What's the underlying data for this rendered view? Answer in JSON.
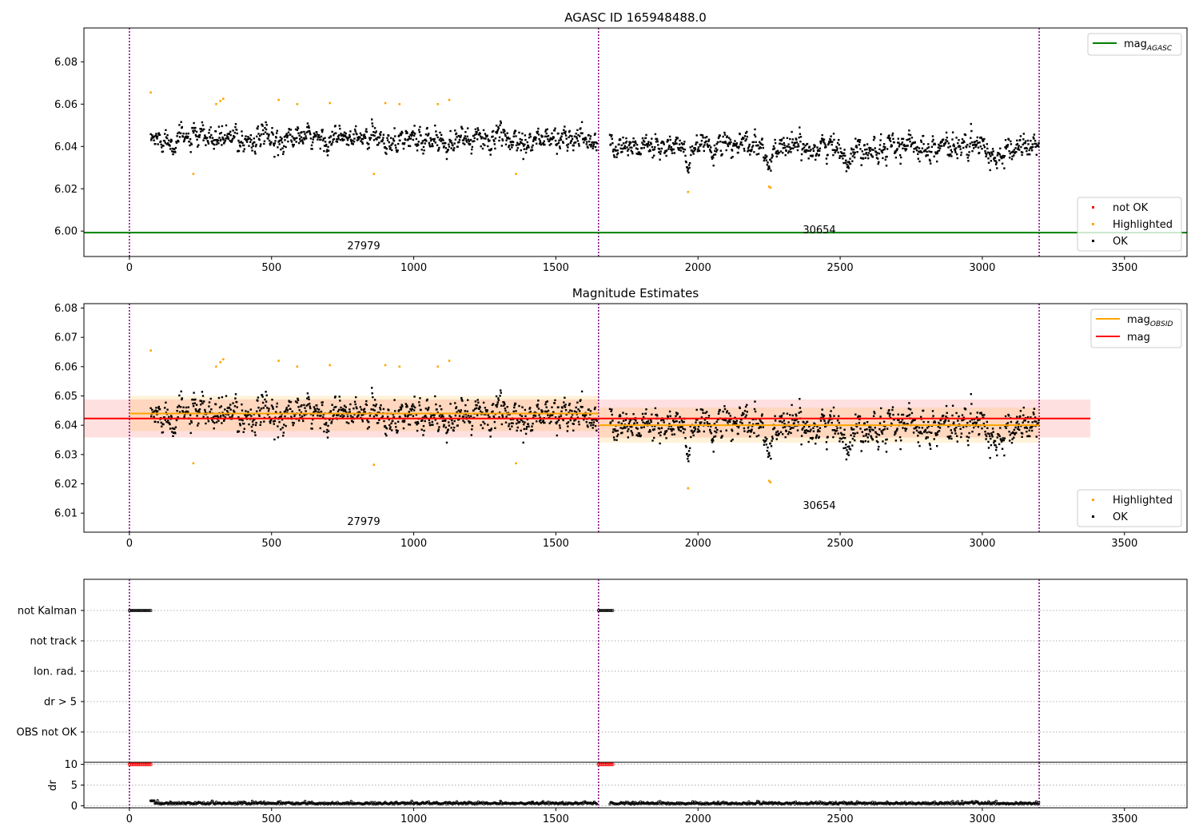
{
  "chart_data": [
    {
      "type": "scatter",
      "title": "AGASC ID 165948488.0",
      "xlabel": "",
      "ylabel": "",
      "xlim": [
        -160,
        3720
      ],
      "ylim": [
        5.988,
        6.096
      ],
      "xticks": [
        0,
        500,
        1000,
        1500,
        2000,
        2500,
        3000,
        3500
      ],
      "yticks": [
        6.0,
        6.02,
        6.04,
        6.06,
        6.08
      ],
      "ytick_labels": [
        "6.00",
        "6.02",
        "6.04",
        "6.06",
        "6.08"
      ],
      "grid": false,
      "obsid_boundaries": [
        0,
        1650,
        3200
      ],
      "obsid_labels": [
        {
          "text": "27979",
          "x": 825,
          "y": 5.993
        },
        {
          "text": "30654",
          "x": 2425,
          "y": 6.0005
        }
      ],
      "lines": [
        {
          "name": "mag$_{AGASC}$",
          "label_main": "mag",
          "label_sub": "AGASC",
          "color": "#008000",
          "y": 5.9993,
          "x": [
            -160,
            3720
          ]
        }
      ],
      "legend_top": {
        "position": "upper right",
        "entries": [
          {
            "label_main": "mag",
            "label_sub": "AGASC",
            "color": "#008000",
            "kind": "line"
          }
        ]
      },
      "legend_bottom": {
        "position": "lower right",
        "entries": [
          {
            "label": "not OK",
            "color": "#ff0000",
            "kind": "marker"
          },
          {
            "label": "Highlighted",
            "color": "#ffa500",
            "kind": "marker"
          },
          {
            "label": "OK",
            "color": "#000000",
            "kind": "marker"
          }
        ]
      },
      "series": [
        {
          "name": "OK",
          "color": "#000000",
          "segments": [
            {
              "x0": 75,
              "x1": 1645,
              "mean": 6.0435,
              "sd": 0.0055
            },
            {
              "x0": 1690,
              "x1": 3200,
              "mean": 6.04,
              "sd": 0.0058
            }
          ]
        },
        {
          "name": "Highlighted",
          "color": "#ffa500",
          "points": [
            [
              75,
              6.0655
            ],
            [
              225,
              6.027
            ],
            [
              305,
              6.06
            ],
            [
              320,
              6.0615
            ],
            [
              330,
              6.0625
            ],
            [
              525,
              6.062
            ],
            [
              590,
              6.06
            ],
            [
              705,
              6.0605
            ],
            [
              860,
              6.027
            ],
            [
              900,
              6.0605
            ],
            [
              950,
              6.06
            ],
            [
              1085,
              6.06
            ],
            [
              1125,
              6.062
            ],
            [
              1360,
              6.027
            ],
            [
              1965,
              6.0185
            ],
            [
              2250,
              6.021
            ],
            [
              2255,
              6.0205
            ]
          ]
        }
      ]
    },
    {
      "type": "scatter",
      "title": "Magnitude Estimates",
      "xlabel": "",
      "ylabel": "",
      "xlim": [
        -160,
        3720
      ],
      "ylim": [
        6.0035,
        6.0815
      ],
      "xticks": [
        0,
        500,
        1000,
        1500,
        2000,
        2500,
        3000,
        3500
      ],
      "yticks": [
        6.01,
        6.02,
        6.03,
        6.04,
        6.05,
        6.06,
        6.07,
        6.08
      ],
      "ytick_labels": [
        "6.01",
        "6.02",
        "6.03",
        "6.04",
        "6.05",
        "6.06",
        "6.07",
        "6.08"
      ],
      "grid": false,
      "obsid_boundaries": [
        0,
        1650,
        3200
      ],
      "obsid_labels": [
        {
          "text": "27979",
          "x": 825,
          "y": 6.0065
        },
        {
          "text": "30654",
          "x": 2425,
          "y": 6.0125
        }
      ],
      "bands": [
        {
          "name": "mag",
          "color": "#ff0000",
          "y": 6.0423,
          "low": 6.0358,
          "high": 6.0488,
          "x": [
            -160,
            3380
          ]
        },
        {
          "name": "mag_OBSID 27979",
          "color": "#ffa500",
          "y": 6.044,
          "low": 6.038,
          "high": 6.05,
          "x": [
            0,
            1650
          ]
        },
        {
          "name": "mag_OBSID 30654",
          "color": "#ffa500",
          "y": 6.04,
          "low": 6.034,
          "high": 6.046,
          "x": [
            1650,
            3200
          ]
        }
      ],
      "legend_top": {
        "position": "upper right",
        "entries": [
          {
            "label_main": "mag",
            "label_sub": "OBSID",
            "color": "#ffa500",
            "kind": "line"
          },
          {
            "label_main": "mag",
            "label_sub": "",
            "color": "#ff0000",
            "kind": "line"
          }
        ]
      },
      "legend_bottom": {
        "position": "lower right",
        "entries": [
          {
            "label": "Highlighted",
            "color": "#ffa500",
            "kind": "marker"
          },
          {
            "label": "OK",
            "color": "#000000",
            "kind": "marker"
          }
        ]
      },
      "series": [
        {
          "name": "OK",
          "color": "#000000",
          "segments": [
            {
              "x0": 75,
              "x1": 1645,
              "mean": 6.0435,
              "sd": 0.0055
            },
            {
              "x0": 1690,
              "x1": 3200,
              "mean": 6.04,
              "sd": 0.0058
            }
          ]
        },
        {
          "name": "Highlighted",
          "color": "#ffa500",
          "points": [
            [
              75,
              6.0655
            ],
            [
              225,
              6.027
            ],
            [
              305,
              6.06
            ],
            [
              320,
              6.0615
            ],
            [
              330,
              6.0625
            ],
            [
              525,
              6.062
            ],
            [
              590,
              6.06
            ],
            [
              705,
              6.0605
            ],
            [
              860,
              6.0265
            ],
            [
              900,
              6.0605
            ],
            [
              950,
              6.06
            ],
            [
              1085,
              6.06
            ],
            [
              1125,
              6.062
            ],
            [
              1360,
              6.027
            ],
            [
              1965,
              6.0185
            ],
            [
              2250,
              6.021
            ],
            [
              2255,
              6.0205
            ]
          ]
        }
      ]
    },
    {
      "type": "scatter",
      "title": "",
      "xlim": [
        -160,
        3720
      ],
      "xticks": [
        0,
        500,
        1000,
        1500,
        2000,
        2500,
        3000,
        3500
      ],
      "flag_rows": [
        "not Kalman",
        "not track",
        "Ion. rad.",
        "dr > 5",
        "OBS not OK"
      ],
      "flag_points": [
        {
          "row": "not Kalman",
          "x0": 0,
          "x1": 75
        },
        {
          "row": "not Kalman",
          "x0": 1650,
          "x1": 1700
        }
      ],
      "grid": true,
      "obsid_boundaries": [
        0,
        1650,
        3200
      ]
    },
    {
      "type": "scatter",
      "title": "",
      "xlabel": "",
      "ylabel": "dr",
      "xlim": [
        -160,
        3720
      ],
      "ylim": [
        -0.5,
        10.5
      ],
      "xticks": [
        0,
        500,
        1000,
        1500,
        2000,
        2500,
        3000,
        3500
      ],
      "yticks": [
        0,
        5,
        10
      ],
      "grid": true,
      "obsid_boundaries": [
        0,
        1650,
        3200
      ],
      "series": [
        {
          "name": "dr > 5",
          "color": "#ff0000",
          "value": 10,
          "ranges": [
            [
              0,
              75
            ],
            [
              1650,
              1700
            ]
          ]
        },
        {
          "name": "dr",
          "color": "#000000",
          "value": 0.4,
          "ranges": [
            [
              75,
              1645
            ],
            [
              1690,
              3200
            ]
          ]
        }
      ]
    }
  ]
}
